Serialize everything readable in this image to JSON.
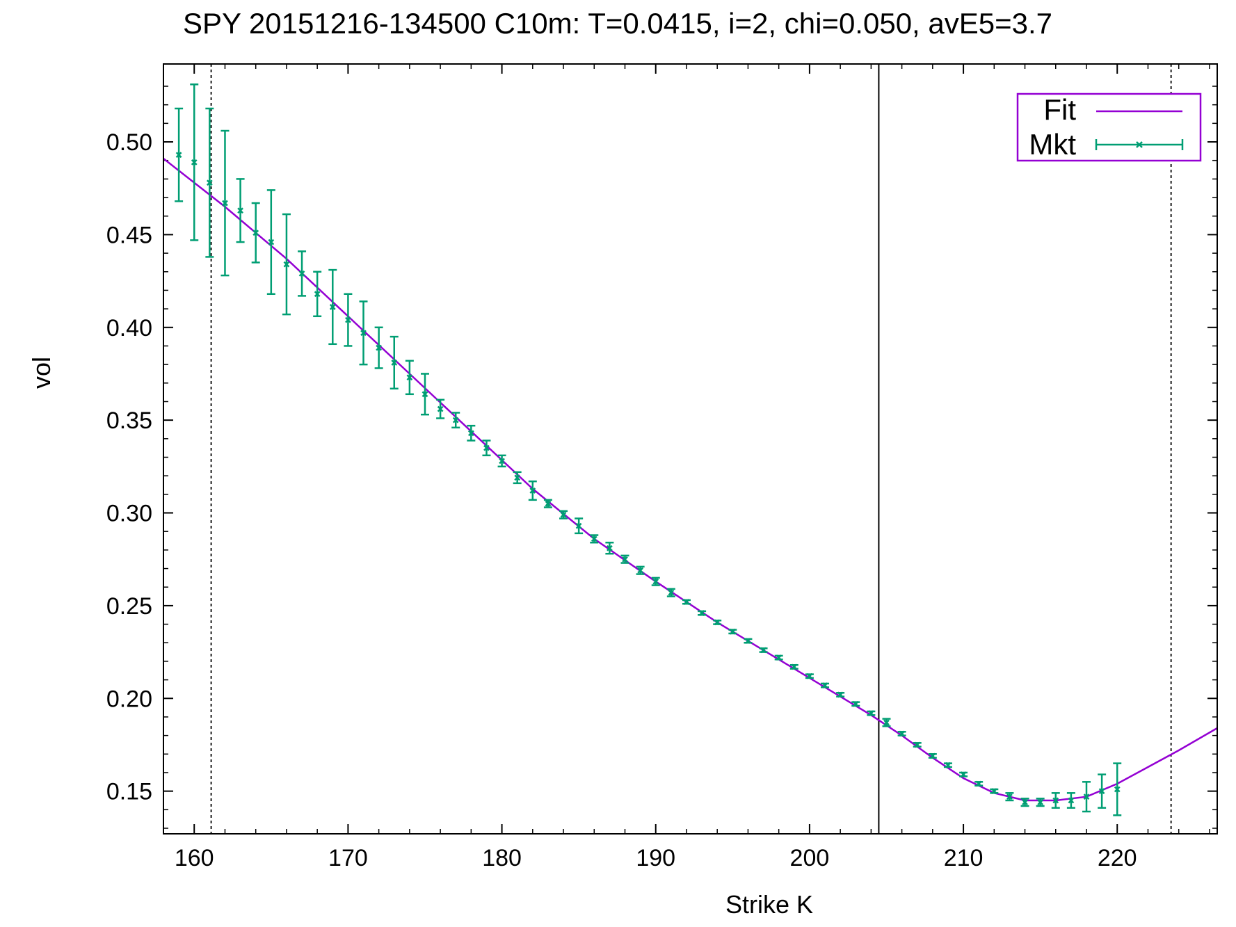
{
  "chart_data": {
    "type": "scatter",
    "title": "SPY 20151216-134500  C10m:  T=0.0415, i=2, chi=0.050, avE5=3.7",
    "xlabel": "Strike K",
    "ylabel": "vol",
    "xlim": [
      158,
      226.5
    ],
    "ylim": [
      0.127,
      0.542
    ],
    "xticks": [
      160,
      170,
      180,
      190,
      200,
      210,
      220
    ],
    "xtick_labels": [
      "160",
      "170",
      "180",
      "190",
      "200",
      "210",
      "220"
    ],
    "yticks": [
      0.15,
      0.2,
      0.25,
      0.3,
      0.35,
      0.4,
      0.45,
      0.5
    ],
    "ytick_labels": [
      "0.15",
      "0.20",
      "0.25",
      "0.30",
      "0.35",
      "0.40",
      "0.45",
      "0.50"
    ],
    "grid": false,
    "legend_position": "top-right",
    "vertical_lines": [
      {
        "x": 161.1,
        "style": "dotted"
      },
      {
        "x": 204.5,
        "style": "solid"
      },
      {
        "x": 223.5,
        "style": "dotted"
      }
    ],
    "series": [
      {
        "name": "Fit",
        "kind": "line",
        "color": "#9400d3",
        "x": [
          158,
          162,
          166,
          170,
          174,
          178,
          182,
          186,
          190,
          194,
          198,
          202,
          204,
          206,
          208,
          210,
          212,
          214,
          216,
          218,
          220,
          222,
          224,
          226.5
        ],
        "y": [
          0.491,
          0.465,
          0.437,
          0.406,
          0.375,
          0.344,
          0.313,
          0.286,
          0.263,
          0.241,
          0.221,
          0.201,
          0.191,
          0.18,
          0.168,
          0.157,
          0.149,
          0.145,
          0.145,
          0.147,
          0.154,
          0.163,
          0.172,
          0.184
        ]
      },
      {
        "name": "Mkt",
        "kind": "errorbar",
        "color": "#009e73",
        "x": [
          159,
          160,
          161,
          162,
          163,
          164,
          165,
          166,
          167,
          168,
          169,
          170,
          171,
          172,
          173,
          174,
          175,
          176,
          177,
          178,
          179,
          180,
          181,
          182,
          183,
          184,
          185,
          186,
          187,
          188,
          189,
          190,
          191,
          192,
          193,
          194,
          195,
          196,
          197,
          198,
          199,
          200,
          201,
          202,
          203,
          204,
          205,
          206,
          207,
          208,
          209,
          210,
          211,
          212,
          213,
          214,
          215,
          216,
          217,
          218,
          219,
          220
        ],
        "y": [
          0.493,
          0.489,
          0.478,
          0.467,
          0.463,
          0.451,
          0.446,
          0.434,
          0.429,
          0.418,
          0.411,
          0.404,
          0.397,
          0.389,
          0.381,
          0.373,
          0.364,
          0.356,
          0.35,
          0.343,
          0.335,
          0.328,
          0.319,
          0.312,
          0.305,
          0.299,
          0.293,
          0.286,
          0.281,
          0.275,
          0.269,
          0.263,
          0.257,
          0.252,
          0.246,
          0.241,
          0.236,
          0.231,
          0.226,
          0.222,
          0.217,
          0.212,
          0.207,
          0.202,
          0.197,
          0.192,
          0.187,
          0.181,
          0.175,
          0.169,
          0.164,
          0.159,
          0.154,
          0.15,
          0.147,
          0.144,
          0.144,
          0.145,
          0.145,
          0.147,
          0.15,
          0.151
        ],
        "error": [
          0.025,
          0.042,
          0.04,
          0.039,
          0.017,
          0.016,
          0.028,
          0.027,
          0.012,
          0.012,
          0.02,
          0.014,
          0.017,
          0.011,
          0.014,
          0.009,
          0.011,
          0.005,
          0.004,
          0.004,
          0.004,
          0.003,
          0.003,
          0.005,
          0.002,
          0.002,
          0.004,
          0.002,
          0.003,
          0.002,
          0.002,
          0.002,
          0.002,
          0.001,
          0.001,
          0.001,
          0.001,
          0.001,
          0.001,
          0.001,
          0.001,
          0.001,
          0.001,
          0.001,
          0.001,
          0.001,
          0.002,
          0.001,
          0.001,
          0.001,
          0.001,
          0.001,
          0.001,
          0.001,
          0.002,
          0.002,
          0.002,
          0.004,
          0.004,
          0.008,
          0.009,
          0.014
        ]
      }
    ]
  }
}
